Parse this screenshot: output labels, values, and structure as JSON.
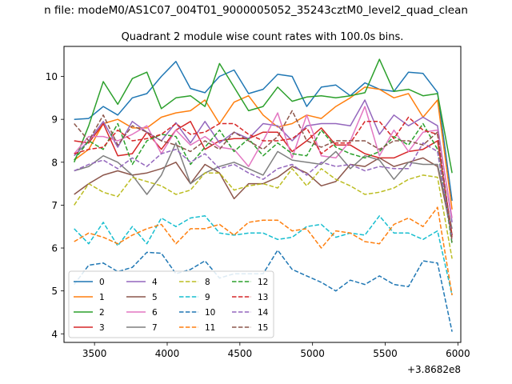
{
  "figure": {
    "suptitle": "n file: modeM0/AS1C07_004T01_9000005052_35243cztM0_level2_quad_clean",
    "offset_label": "+3.8682e8"
  },
  "chart_data": {
    "type": "line",
    "title": "Quadrant 2 module wise count rates with 100.0s bins.",
    "xlabel": "",
    "ylabel": "",
    "x_offset": 386820000,
    "xlim": [
      3290,
      6020
    ],
    "ylim": [
      3.8,
      10.7
    ],
    "xticks": [
      3500,
      4000,
      4500,
      5000,
      5500,
      6000
    ],
    "yticks": [
      4,
      5,
      6,
      7,
      8,
      9,
      10
    ],
    "grid": false,
    "legend_position": "lower-left",
    "x": [
      3360,
      3460,
      3560,
      3660,
      3760,
      3860,
      3960,
      4060,
      4160,
      4260,
      4360,
      4460,
      4560,
      4660,
      4760,
      4860,
      4960,
      5060,
      5160,
      5260,
      5360,
      5460,
      5560,
      5660,
      5760,
      5860,
      5960
    ],
    "series": [
      {
        "name": "0",
        "color": "#1f77b4",
        "dash": "solid",
        "values": [
          9.0,
          9.02,
          9.3,
          9.1,
          9.5,
          9.6,
          10.0,
          10.35,
          9.72,
          9.62,
          10.0,
          10.15,
          9.6,
          9.7,
          10.05,
          10.0,
          9.3,
          9.75,
          9.8,
          9.55,
          9.85,
          9.7,
          9.65,
          10.1,
          10.07,
          9.63,
          7.1
        ]
      },
      {
        "name": "1",
        "color": "#ff7f0e",
        "dash": "solid",
        "values": [
          8.05,
          8.3,
          8.9,
          9.0,
          8.8,
          8.8,
          9.05,
          9.15,
          9.2,
          9.45,
          8.9,
          9.4,
          9.55,
          9.1,
          8.82,
          8.9,
          9.1,
          9.02,
          9.3,
          9.5,
          9.75,
          9.7,
          9.5,
          9.6,
          9.05,
          9.45,
          6.9
        ]
      },
      {
        "name": "2",
        "color": "#2ca02c",
        "dash": "solid",
        "values": [
          8.0,
          8.85,
          9.88,
          9.35,
          9.95,
          10.1,
          9.25,
          9.5,
          9.55,
          9.3,
          10.3,
          9.75,
          9.2,
          9.3,
          9.75,
          9.42,
          9.52,
          9.55,
          9.5,
          9.55,
          9.62,
          10.4,
          9.65,
          9.7,
          9.55,
          9.6,
          7.75
        ]
      },
      {
        "name": "3",
        "color": "#d62728",
        "dash": "solid",
        "values": [
          8.5,
          8.45,
          8.9,
          8.15,
          8.2,
          8.7,
          8.3,
          8.75,
          8.95,
          8.3,
          8.5,
          8.55,
          8.55,
          8.7,
          8.7,
          8.25,
          8.5,
          8.8,
          8.4,
          8.4,
          8.2,
          8.1,
          8.1,
          8.25,
          8.3,
          8.5,
          6.3
        ]
      },
      {
        "name": "4",
        "color": "#9467bd",
        "dash": "solid",
        "values": [
          8.15,
          8.5,
          8.95,
          8.35,
          8.95,
          8.7,
          8.5,
          8.92,
          8.45,
          8.95,
          8.45,
          8.7,
          8.55,
          8.9,
          8.85,
          8.5,
          8.85,
          8.9,
          8.9,
          8.85,
          9.45,
          8.65,
          9.1,
          8.85,
          9.05,
          8.85,
          6.6
        ]
      },
      {
        "name": "5",
        "color": "#8c564b",
        "dash": "solid",
        "values": [
          7.25,
          7.5,
          7.7,
          7.8,
          7.7,
          7.75,
          7.85,
          8.0,
          7.5,
          7.95,
          7.75,
          7.15,
          7.5,
          7.5,
          7.65,
          7.9,
          7.75,
          7.45,
          7.55,
          7.95,
          7.9,
          8.1,
          7.9,
          8.0,
          8.1,
          7.9,
          6.3
        ]
      },
      {
        "name": "6",
        "color": "#e377c2",
        "dash": "solid",
        "values": [
          8.2,
          8.6,
          8.6,
          8.5,
          8.65,
          8.85,
          8.2,
          8.75,
          8.4,
          8.6,
          8.35,
          8.3,
          7.9,
          8.5,
          9.15,
          8.1,
          9.1,
          8.15,
          8.1,
          8.5,
          9.3,
          8.15,
          8.75,
          8.25,
          8.7,
          8.75,
          6.7
        ]
      },
      {
        "name": "7",
        "color": "#7f7f7f",
        "dash": "solid",
        "values": [
          7.8,
          7.9,
          8.15,
          8.0,
          7.7,
          7.25,
          7.7,
          8.45,
          7.5,
          7.75,
          7.9,
          8.0,
          7.85,
          7.7,
          8.25,
          8.05,
          8.0,
          7.95,
          8.25,
          7.85,
          8.15,
          8.05,
          7.6,
          8.0,
          7.95,
          7.95,
          6.45
        ]
      },
      {
        "name": "8",
        "color": "#bcbd22",
        "dash": "dashed",
        "values": [
          7.0,
          7.5,
          7.3,
          7.2,
          7.65,
          7.55,
          7.45,
          7.25,
          7.35,
          7.75,
          7.75,
          7.35,
          7.45,
          7.5,
          7.4,
          7.85,
          7.45,
          7.85,
          7.6,
          7.45,
          7.25,
          7.3,
          7.4,
          7.6,
          7.7,
          7.65,
          5.75
        ]
      },
      {
        "name": "9",
        "color": "#17becf",
        "dash": "dashed",
        "values": [
          6.45,
          6.1,
          6.6,
          6.05,
          6.5,
          6.1,
          6.7,
          6.5,
          6.7,
          6.75,
          6.35,
          6.3,
          6.35,
          6.35,
          6.2,
          6.25,
          6.5,
          6.55,
          6.25,
          6.35,
          6.3,
          6.75,
          6.35,
          6.35,
          6.2,
          6.4,
          4.9
        ]
      },
      {
        "name": "10",
        "color": "#1f77b4",
        "dash": "dashed",
        "values": [
          5.15,
          5.6,
          5.65,
          5.45,
          5.55,
          5.9,
          5.88,
          5.4,
          5.5,
          5.7,
          5.3,
          5.4,
          5.4,
          5.4,
          5.95,
          5.5,
          5.35,
          5.2,
          5.0,
          5.25,
          5.15,
          5.35,
          5.15,
          5.1,
          5.7,
          5.65,
          4.05
        ]
      },
      {
        "name": "11",
        "color": "#ff7f0e",
        "dash": "dashed",
        "values": [
          6.15,
          6.35,
          6.25,
          6.1,
          6.3,
          6.45,
          6.55,
          6.1,
          6.45,
          6.45,
          6.55,
          6.3,
          6.6,
          6.65,
          6.65,
          6.4,
          6.45,
          6.0,
          6.4,
          6.35,
          6.15,
          6.1,
          6.55,
          6.7,
          6.5,
          6.95,
          4.9
        ]
      },
      {
        "name": "12",
        "color": "#2ca02c",
        "dash": "dashed",
        "values": [
          8.05,
          8.5,
          8.3,
          8.9,
          7.95,
          8.5,
          8.65,
          8.6,
          7.95,
          8.35,
          8.75,
          8.25,
          8.55,
          8.15,
          8.45,
          8.2,
          8.15,
          8.75,
          8.35,
          8.2,
          8.1,
          8.25,
          8.6,
          8.4,
          8.9,
          8.3,
          6.1
        ]
      },
      {
        "name": "13",
        "color": "#d62728",
        "dash": "dashed",
        "values": [
          8.2,
          8.3,
          8.35,
          8.75,
          8.5,
          8.55,
          8.65,
          8.9,
          8.65,
          8.7,
          8.9,
          8.9,
          8.65,
          8.5,
          8.5,
          8.55,
          8.8,
          8.2,
          8.45,
          8.45,
          8.95,
          8.95,
          8.55,
          9.05,
          8.75,
          8.65,
          6.25
        ]
      },
      {
        "name": "14",
        "color": "#9467bd",
        "dash": "dashed",
        "values": [
          7.8,
          7.95,
          8.05,
          7.85,
          8.1,
          7.9,
          8.2,
          8.3,
          8.0,
          8.2,
          7.85,
          7.95,
          7.75,
          7.6,
          7.85,
          7.95,
          7.7,
          8.0,
          7.9,
          7.95,
          7.8,
          7.9,
          7.85,
          7.85,
          8.45,
          8.25,
          6.2
        ]
      },
      {
        "name": "15",
        "color": "#8c564b",
        "dash": "dashed",
        "values": [
          8.9,
          8.5,
          9.1,
          8.4,
          8.85,
          8.7,
          8.5,
          8.4,
          8.25,
          8.5,
          8.3,
          8.7,
          8.5,
          8.3,
          8.6,
          9.2,
          8.5,
          8.35,
          8.5,
          8.5,
          8.5,
          8.3,
          8.5,
          8.5,
          8.4,
          8.7,
          6.15
        ]
      }
    ]
  }
}
